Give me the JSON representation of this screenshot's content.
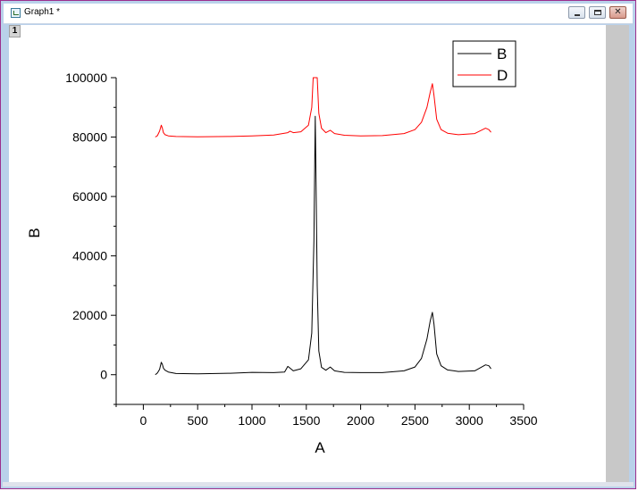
{
  "window": {
    "title": "Graph1 *",
    "layer_label": "1",
    "minimize_icon": "minimize-icon",
    "restore_icon": "restore-icon",
    "close_icon": "close-icon"
  },
  "colors": {
    "series_b": "#000000",
    "series_d": "#ff0000",
    "frame": "#9b2f8e"
  },
  "chart_data": {
    "type": "line",
    "title": "",
    "xlabel": "A",
    "ylabel": "B",
    "xlim": [
      -250,
      3500
    ],
    "ylim": [
      -10000,
      100000
    ],
    "xticks": [
      0,
      500,
      1000,
      1500,
      2000,
      2500,
      3000,
      3500
    ],
    "yticks": [
      0,
      20000,
      40000,
      60000,
      80000,
      100000
    ],
    "grid": false,
    "legend": {
      "position": "top-right",
      "entries": [
        "B",
        "D"
      ]
    },
    "series": [
      {
        "name": "B",
        "color": "#000000",
        "x": [
          110,
          130,
          150,
          165,
          175,
          185,
          200,
          230,
          300,
          500,
          800,
          1000,
          1200,
          1300,
          1330,
          1350,
          1380,
          1450,
          1520,
          1550,
          1570,
          1582,
          1590,
          1600,
          1615,
          1640,
          1680,
          1720,
          1760,
          1850,
          2000,
          2200,
          2400,
          2500,
          2560,
          2610,
          2640,
          2660,
          2675,
          2700,
          2740,
          2800,
          2900,
          3050,
          3150,
          3180,
          3200
        ],
        "values": [
          0,
          600,
          1800,
          4200,
          3500,
          2200,
          1500,
          900,
          400,
          300,
          500,
          800,
          700,
          900,
          2800,
          2200,
          1300,
          2000,
          5000,
          14000,
          45000,
          87000,
          65000,
          30000,
          8000,
          2500,
          1500,
          2600,
          1300,
          800,
          700,
          700,
          1300,
          2600,
          5500,
          12000,
          18000,
          21000,
          17000,
          7000,
          3000,
          1600,
          1100,
          1300,
          3300,
          3000,
          2000
        ]
      },
      {
        "name": "D",
        "color": "#ff0000",
        "x": [
          110,
          130,
          150,
          165,
          175,
          185,
          200,
          230,
          300,
          500,
          800,
          1000,
          1200,
          1330,
          1350,
          1380,
          1450,
          1520,
          1550,
          1563,
          1580,
          1600,
          1615,
          1640,
          1680,
          1720,
          1760,
          1850,
          2000,
          2200,
          2400,
          2500,
          2560,
          2610,
          2640,
          2660,
          2675,
          2700,
          2740,
          2800,
          2900,
          3050,
          3150,
          3180,
          3200
        ],
        "values": [
          80000,
          80500,
          82000,
          84000,
          83000,
          81500,
          80800,
          80400,
          80200,
          80100,
          80200,
          80400,
          80700,
          81500,
          82000,
          81500,
          81800,
          84000,
          90000,
          100000,
          100000,
          100000,
          88000,
          83000,
          81500,
          82300,
          81200,
          80600,
          80400,
          80500,
          81200,
          82500,
          85000,
          90000,
          95000,
          98000,
          94000,
          86000,
          82500,
          81300,
          80800,
          81200,
          83000,
          82500,
          81600
        ]
      }
    ]
  }
}
